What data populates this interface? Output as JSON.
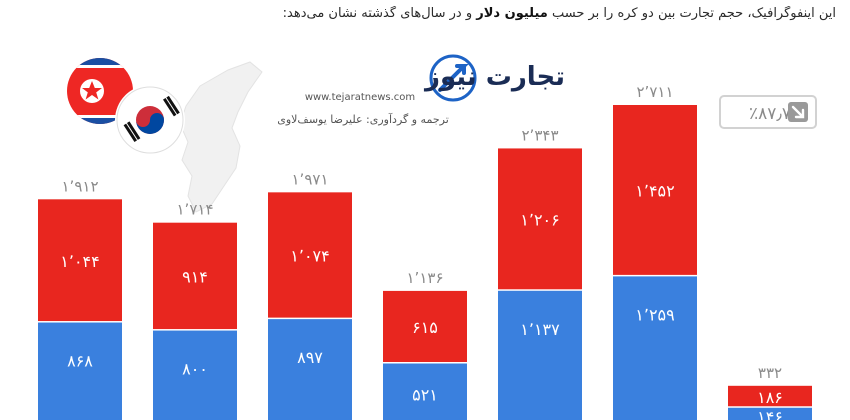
{
  "caption": {
    "before": "این اینفوگرافیک، حجم تجارت بین دو کره را بر حسب",
    "bold": "میلیون دلار",
    "after": "و در سال‌های گذشته نشان می‌دهد:"
  },
  "logo": {
    "name": "تجارت نیوز",
    "url": "www.tejaratnews.com",
    "credit": "ترجمه و گردآوری: علیرضا یوسف‌لاوی"
  },
  "change_badge": {
    "value": "٪۸۷٫۷",
    "arrow_icon": "arrow-down-right-icon"
  },
  "colors": {
    "north_korea": "#e8261f",
    "south_korea": "#3a80de",
    "total_label": "#8a8a8a",
    "badge_border": "#d2d2d2"
  },
  "chart_data": {
    "type": "bar",
    "stacked": true,
    "series": [
      {
        "name": "",
        "color": "#3a80de",
        "values": [
          868,
          800,
          897,
          521,
          1137,
          1259,
          146
        ],
        "labels": [
          "۸۶۸",
          "۸۰۰",
          "۸۹۷",
          "۵۲۱",
          "۱٬۱۳۷",
          "۱٬۲۵۹",
          "۱۴۶"
        ]
      },
      {
        "name": "",
        "color": "#e8261f",
        "values": [
          1044,
          914,
          1074,
          615,
          1206,
          1452,
          186
        ],
        "labels": [
          "۱٬۰۴۴",
          "۹۱۴",
          "۱٬۰۷۴",
          "۶۱۵",
          "۱٬۲۰۶",
          "۱٬۴۵۲",
          "۱۸۶"
        ]
      }
    ],
    "totals": [
      1912,
      1714,
      1971,
      1136,
      2343,
      2711,
      332
    ],
    "total_labels": [
      "۱٬۹۱۲",
      "۱٬۷۱۴",
      "۱٬۹۷۱",
      "۱٬۱۳۶",
      "۲٬۳۴۳",
      "۲٬۷۱۱",
      "۳۳۲"
    ],
    "title": "",
    "xlabel": "",
    "ylabel": ""
  }
}
